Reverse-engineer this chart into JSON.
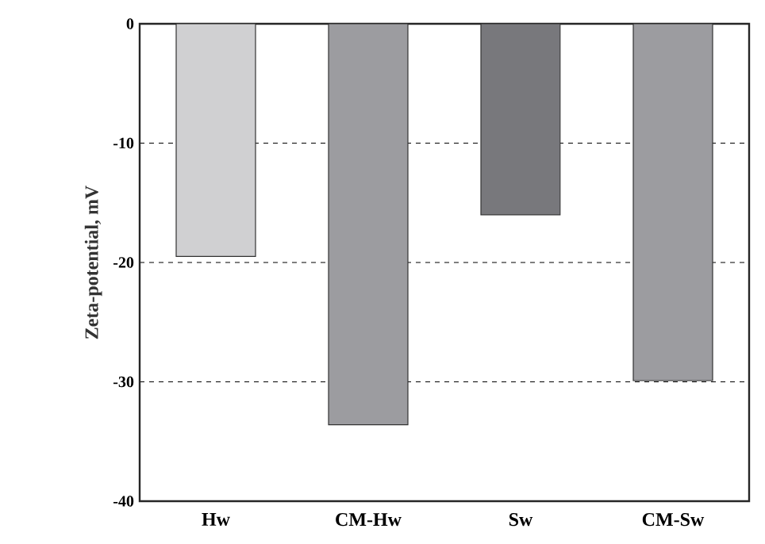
{
  "chart_data": {
    "type": "bar",
    "ylabel": "Zeta-potential, mV",
    "categories": [
      "Hw",
      "CM-Hw",
      "Sw",
      "CM-Sw"
    ],
    "values": [
      -19.5,
      -33.6,
      -16.0,
      -29.9
    ],
    "colors": [
      "#d0d0d2",
      "#9c9ca0",
      "#78787c",
      "#9c9ca0"
    ],
    "ylim": [
      -40,
      0
    ],
    "yticks": [
      -40,
      -30,
      -20,
      -10,
      0
    ],
    "grid": "y"
  }
}
